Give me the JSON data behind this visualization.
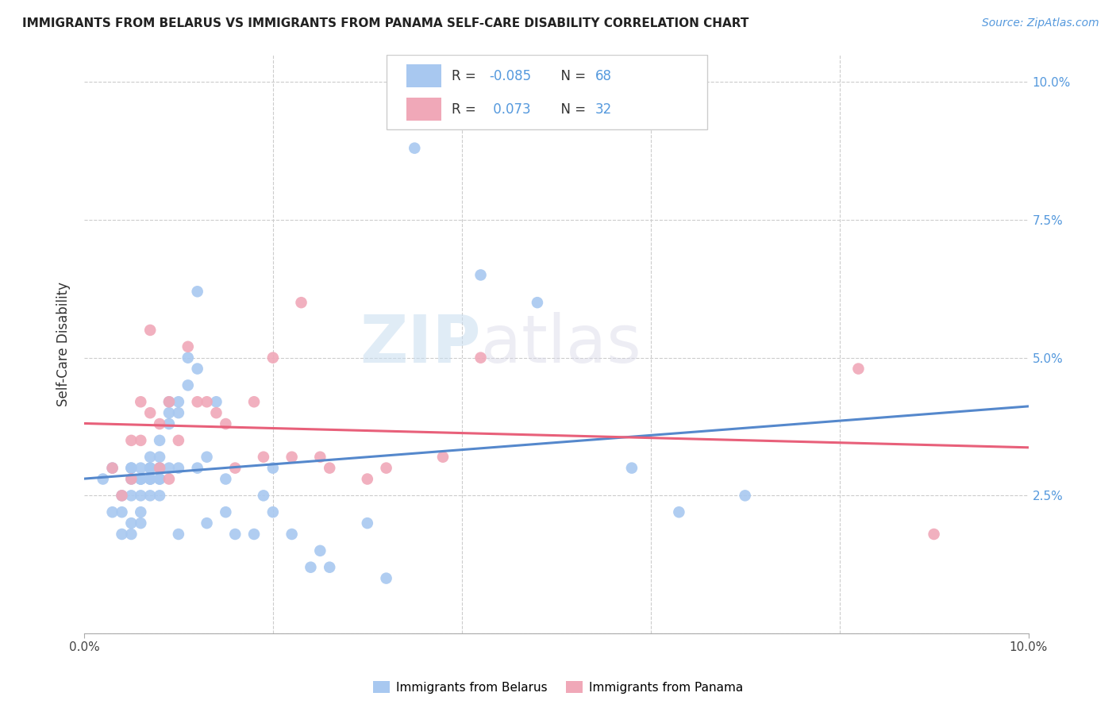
{
  "title": "IMMIGRANTS FROM BELARUS VS IMMIGRANTS FROM PANAMA SELF-CARE DISABILITY CORRELATION CHART",
  "source": "Source: ZipAtlas.com",
  "ylabel": "Self-Care Disability",
  "x_min": 0.0,
  "x_max": 0.1,
  "y_min": 0.0,
  "y_max": 0.105,
  "color_belarus": "#a8c8f0",
  "color_panama": "#f0a8b8",
  "color_line_belarus": "#5588cc",
  "color_line_panama": "#e8607a",
  "watermark_zip": "ZIP",
  "watermark_atlas": "atlas",
  "belarus_x": [
    0.002,
    0.003,
    0.003,
    0.004,
    0.004,
    0.004,
    0.005,
    0.005,
    0.005,
    0.005,
    0.005,
    0.005,
    0.006,
    0.006,
    0.006,
    0.006,
    0.006,
    0.006,
    0.006,
    0.007,
    0.007,
    0.007,
    0.007,
    0.007,
    0.007,
    0.007,
    0.008,
    0.008,
    0.008,
    0.008,
    0.008,
    0.008,
    0.008,
    0.009,
    0.009,
    0.009,
    0.009,
    0.01,
    0.01,
    0.01,
    0.01,
    0.011,
    0.011,
    0.012,
    0.012,
    0.012,
    0.013,
    0.013,
    0.014,
    0.015,
    0.015,
    0.016,
    0.018,
    0.019,
    0.02,
    0.02,
    0.022,
    0.024,
    0.025,
    0.026,
    0.03,
    0.032,
    0.035,
    0.042,
    0.048,
    0.058,
    0.063,
    0.07
  ],
  "belarus_y": [
    0.028,
    0.022,
    0.03,
    0.025,
    0.018,
    0.022,
    0.03,
    0.028,
    0.025,
    0.02,
    0.018,
    0.03,
    0.028,
    0.03,
    0.028,
    0.025,
    0.022,
    0.02,
    0.028,
    0.032,
    0.028,
    0.03,
    0.025,
    0.028,
    0.03,
    0.028,
    0.032,
    0.03,
    0.035,
    0.028,
    0.03,
    0.025,
    0.028,
    0.042,
    0.038,
    0.04,
    0.03,
    0.042,
    0.04,
    0.03,
    0.018,
    0.05,
    0.045,
    0.048,
    0.062,
    0.03,
    0.032,
    0.02,
    0.042,
    0.022,
    0.028,
    0.018,
    0.018,
    0.025,
    0.03,
    0.022,
    0.018,
    0.012,
    0.015,
    0.012,
    0.02,
    0.01,
    0.088,
    0.065,
    0.06,
    0.03,
    0.022,
    0.025
  ],
  "panama_x": [
    0.003,
    0.004,
    0.005,
    0.005,
    0.006,
    0.006,
    0.007,
    0.007,
    0.008,
    0.008,
    0.009,
    0.009,
    0.01,
    0.011,
    0.012,
    0.013,
    0.014,
    0.015,
    0.016,
    0.018,
    0.019,
    0.02,
    0.022,
    0.023,
    0.025,
    0.026,
    0.03,
    0.032,
    0.038,
    0.042,
    0.082,
    0.09
  ],
  "panama_y": [
    0.03,
    0.025,
    0.028,
    0.035,
    0.042,
    0.035,
    0.055,
    0.04,
    0.03,
    0.038,
    0.028,
    0.042,
    0.035,
    0.052,
    0.042,
    0.042,
    0.04,
    0.038,
    0.03,
    0.042,
    0.032,
    0.05,
    0.032,
    0.06,
    0.032,
    0.03,
    0.028,
    0.03,
    0.032,
    0.05,
    0.048,
    0.018
  ]
}
